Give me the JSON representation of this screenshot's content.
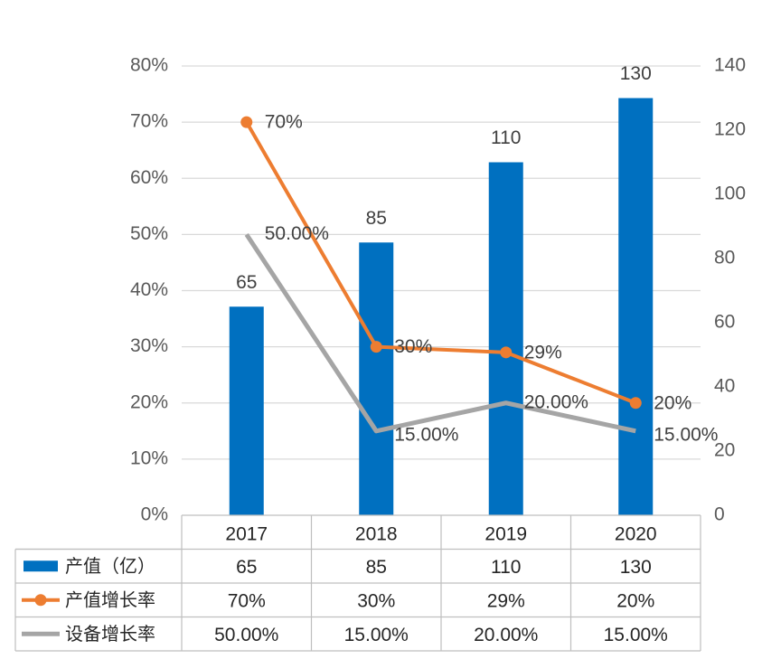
{
  "chart_data": {
    "type": "bar+line",
    "categories": [
      "2017",
      "2018",
      "2019",
      "2020"
    ],
    "y_left": {
      "min": 0,
      "max": 80,
      "ticks": [
        "0%",
        "10%",
        "20%",
        "30%",
        "40%",
        "50%",
        "60%",
        "70%",
        "80%"
      ]
    },
    "y_right": {
      "min": 0,
      "max": 140,
      "ticks": [
        "0",
        "20",
        "40",
        "60",
        "80",
        "100",
        "120",
        "140"
      ]
    },
    "grid": true,
    "legend": "data-table-left",
    "series": [
      {
        "name": "产值（亿）",
        "type": "bar",
        "axis": "right",
        "values": [
          65,
          85,
          110,
          130
        ],
        "labels": [
          "65",
          "85",
          "110",
          "130"
        ],
        "color": "#0070C0"
      },
      {
        "name": "产值增长率",
        "type": "line",
        "axis": "left",
        "marker": "circle",
        "values": [
          70,
          30,
          29,
          20
        ],
        "labels": [
          "70%",
          "30%",
          "29%",
          "20%"
        ],
        "color": "#ED7D31"
      },
      {
        "name": "设备增长率",
        "type": "line",
        "axis": "left",
        "marker": "none",
        "values": [
          50,
          15,
          20,
          15
        ],
        "labels": [
          "50.00%",
          "15.00%",
          "20.00%",
          "15.00%"
        ],
        "color": "#A5A5A5"
      }
    ]
  }
}
